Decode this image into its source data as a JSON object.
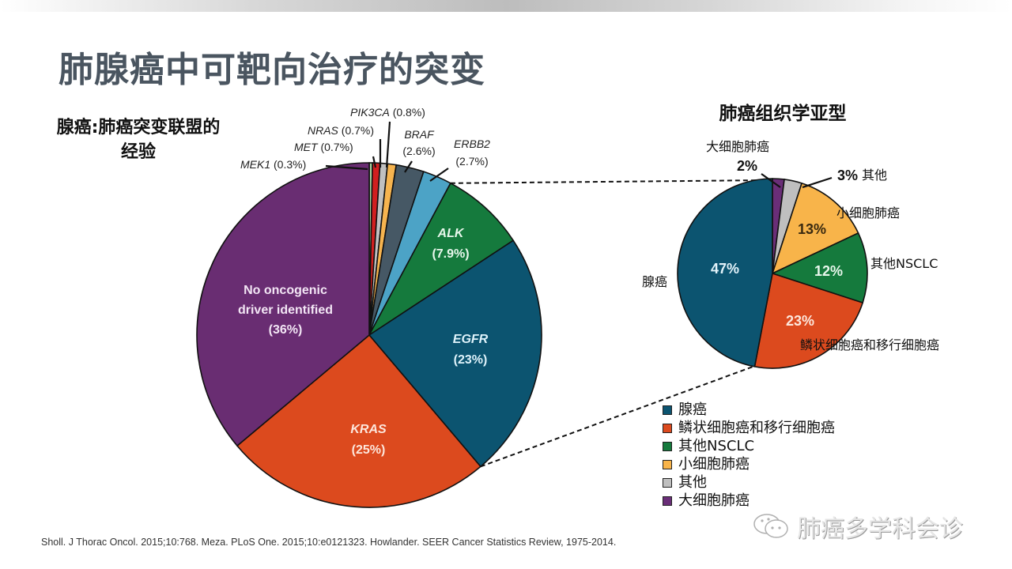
{
  "title": "肺腺癌中可靶向治疗的突变",
  "left_subtitle_line1": "腺癌:肺癌突变联盟的",
  "left_subtitle_line2": "经验",
  "right_subtitle": "肺癌组织学亚型",
  "citation": "Sholl. J Thorac Oncol. 2015;10:768.  Meza. PLoS One. 2015;10:e0121323.  Howlander. SEER Cancer Statistics Review, 1975-2014.",
  "watermark": "肺癌多学科会诊",
  "watermark_icon": "wechat-icon",
  "chart_data": [
    {
      "type": "pie",
      "title": "腺癌:肺癌突变联盟的经验",
      "start": "top",
      "direction": "clockwise",
      "slices": [
        {
          "label": "MEK1",
          "value": 0.3,
          "display": "(0.3%)",
          "color": "#a8d5a2",
          "italic_label": true,
          "label_position": "outside"
        },
        {
          "label": "MET",
          "value": 0.7,
          "display": "(0.7%)",
          "color": "#d11f1f",
          "italic_label": true,
          "label_position": "outside"
        },
        {
          "label": "NRAS",
          "value": 0.7,
          "display": "(0.7%)",
          "color": "#c0c0c0",
          "italic_label": true,
          "label_position": "outside"
        },
        {
          "label": "PIK3CA",
          "value": 0.8,
          "display": "(0.8%)",
          "color": "#f6b44f",
          "italic_label": true,
          "label_position": "outside"
        },
        {
          "label": "BRAF",
          "value": 2.6,
          "display": "(2.6%)",
          "color": "#465865",
          "italic_label": true,
          "label_position": "outside"
        },
        {
          "label": "ERBB2",
          "value": 2.7,
          "display": "(2.7%)",
          "color": "#4ca3c6",
          "italic_label": true,
          "label_position": "outside"
        },
        {
          "label": "ALK",
          "value": 7.9,
          "display": "(7.9%)",
          "color": "#157a3d",
          "italic_label": true,
          "label_position": "inside"
        },
        {
          "label": "EGFR",
          "value": 23,
          "display": "(23%)",
          "color": "#0c5470",
          "italic_label": true,
          "label_position": "inside"
        },
        {
          "label": "KRAS",
          "value": 25,
          "display": "(25%)",
          "color": "#dc4a1e",
          "italic_label": true,
          "label_position": "inside"
        },
        {
          "label": "No oncogenic driver identified",
          "value": 36,
          "display": "(36%)",
          "color": "#692d72",
          "italic_label": false,
          "label_position": "inside"
        }
      ]
    },
    {
      "type": "pie",
      "title": "肺癌组织学亚型",
      "start": "top",
      "direction": "clockwise",
      "slices": [
        {
          "label": "大细胞肺癌",
          "value": 2,
          "display": "2%",
          "color": "#6a2e78"
        },
        {
          "label": "其他",
          "value": 3,
          "display": "3%",
          "color": "#bfbfbf"
        },
        {
          "label": "小细胞肺癌",
          "value": 13,
          "display": "13%",
          "color": "#f8b44a"
        },
        {
          "label": "其他NSCLC",
          "value": 12,
          "display": "12%",
          "color": "#157a3d"
        },
        {
          "label": "鳞状细胞癌和移行细胞癌",
          "value": 23,
          "display": "23%",
          "color": "#dc4a1e"
        },
        {
          "label": "腺癌",
          "value": 47,
          "display": "47%",
          "color": "#0c5470"
        }
      ],
      "legend": [
        "腺癌",
        "鳞状细胞癌和移行细胞癌",
        "其他NSCLC",
        "小细胞肺癌",
        "其他",
        "大细胞肺癌"
      ],
      "legend_placement": "bottom"
    }
  ]
}
